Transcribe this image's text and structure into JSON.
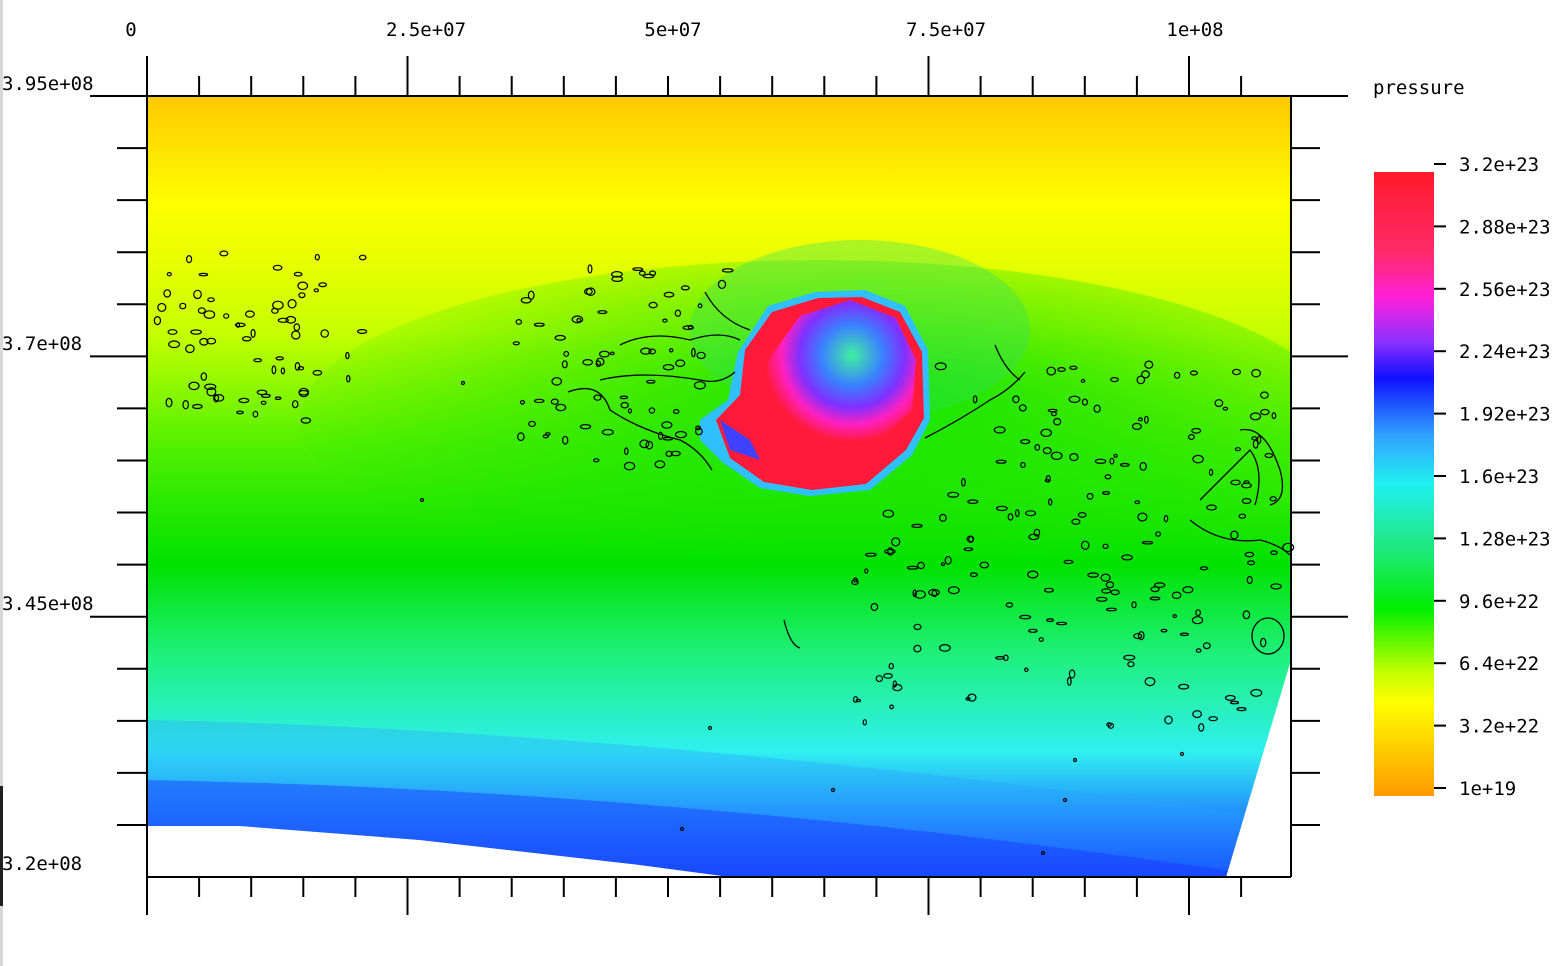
{
  "chart_data": {
    "type": "heatmap",
    "variable": "pressure",
    "x_range": [
      0,
      110000000
    ],
    "y_range": [
      320000000,
      395000000
    ],
    "x_ticks": [
      {
        "value": 0,
        "label": "0"
      },
      {
        "value": 25000000,
        "label": "2.5e+07"
      },
      {
        "value": 50000000,
        "label": "5e+07"
      },
      {
        "value": 75000000,
        "label": "7.5e+07"
      },
      {
        "value": 100000000,
        "label": "1e+08"
      }
    ],
    "y_ticks": [
      {
        "value": 395000000,
        "label": "3.95e+08"
      },
      {
        "value": 370000000,
        "label": "3.7e+08"
      },
      {
        "value": 345000000,
        "label": "3.45e+08"
      },
      {
        "value": 320000000,
        "label": "3.2e+08"
      }
    ],
    "colorbar": {
      "title": "pressure",
      "ticks": [
        "3.2e+23",
        "2.88e+23",
        "2.56e+23",
        "2.24e+23",
        "1.92e+23",
        "1.6e+23",
        "1.28e+23",
        "9.6e+22",
        "6.4e+22",
        "3.2e+22",
        "1e+19"
      ],
      "colors": [
        "#ff1a3a",
        "#ff3a8a",
        "#ff20e0",
        "#8a2cff",
        "#1010ff",
        "#2a90ff",
        "#20f0f0",
        "#20e890",
        "#00ee00",
        "#b8ff00",
        "#ffff00",
        "#ffb000",
        "#ff9a00"
      ]
    },
    "grid": false,
    "legend": "right"
  }
}
